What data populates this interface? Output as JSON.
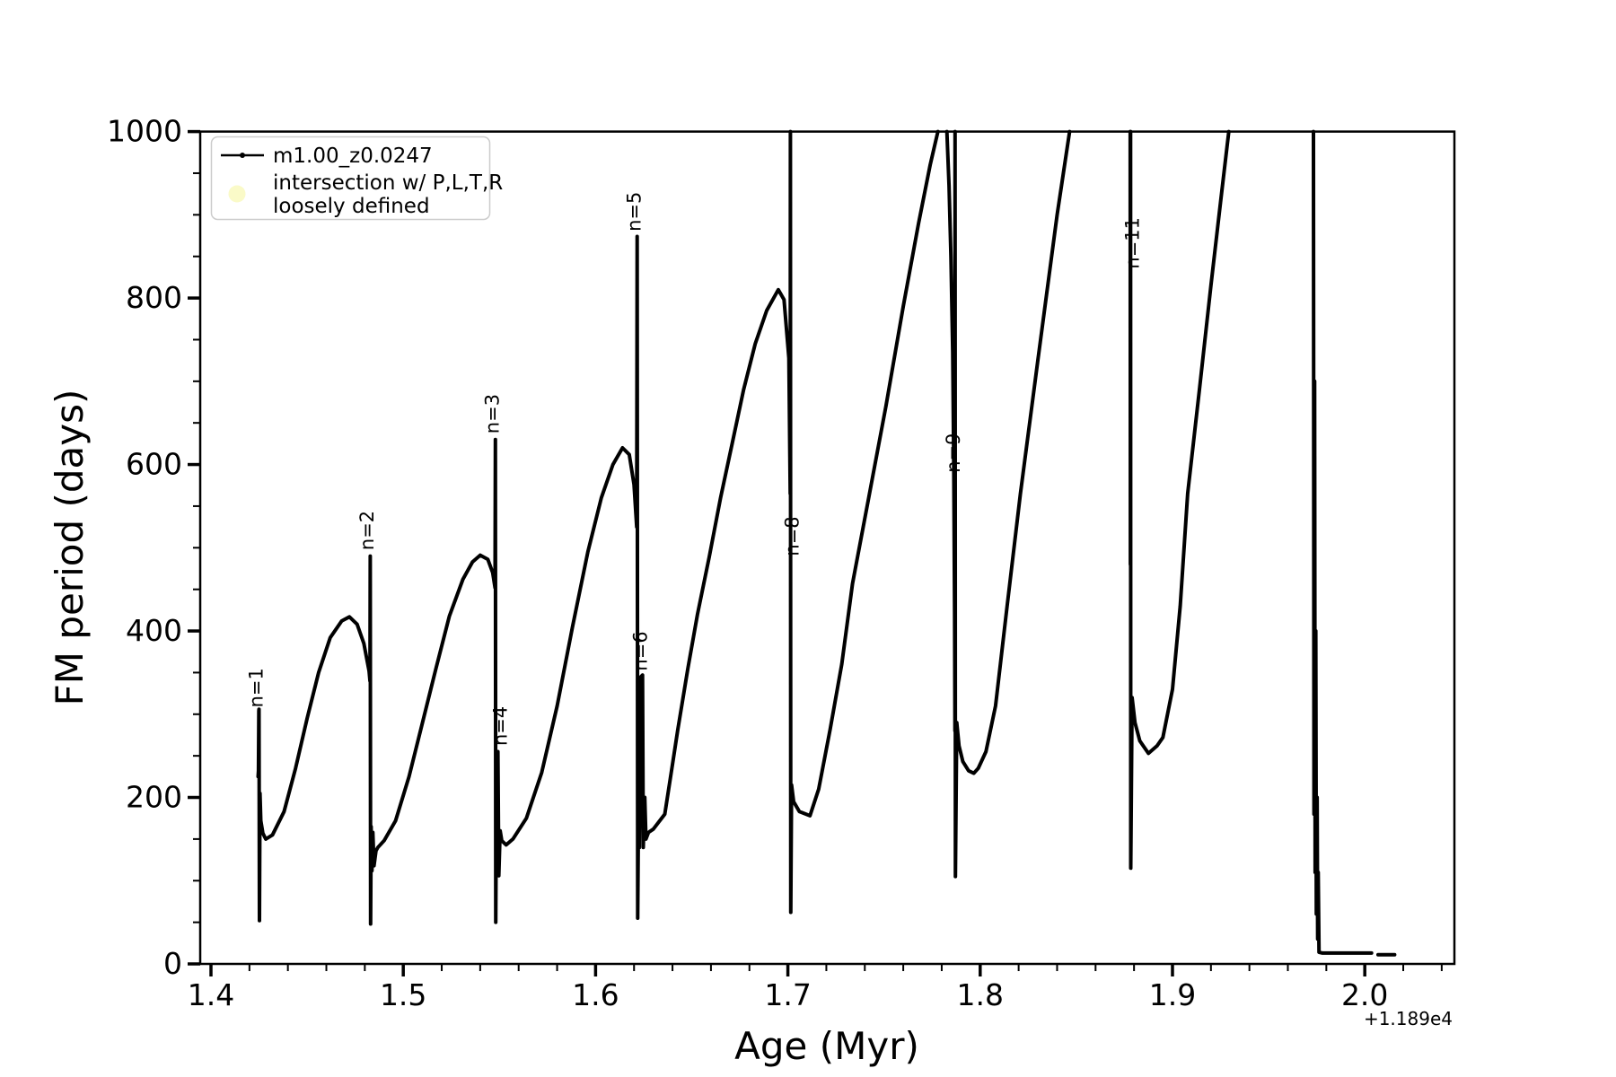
{
  "chart_data": {
    "type": "line",
    "title": "",
    "xlabel": "Age (Myr)",
    "ylabel": "FM period (days)",
    "x_axis_offset": "+1.189e4",
    "xlim": [
      1.3944,
      2.0466
    ],
    "ylim": [
      0,
      1000
    ],
    "grid": false,
    "legend_position": "upper-left",
    "x_major_ticks": [
      1.4,
      1.5,
      1.6,
      1.7,
      1.8,
      1.9,
      2.0
    ],
    "x_major_labels": [
      "1.4",
      "1.5",
      "1.6",
      "1.7",
      "1.8",
      "1.9",
      "2.0"
    ],
    "x_minor_step": 0.02,
    "y_major_ticks": [
      0,
      200,
      400,
      600,
      800,
      1000
    ],
    "y_major_labels": [
      "0",
      "200",
      "400",
      "600",
      "800",
      "1000"
    ],
    "y_minor_step": 50,
    "series": [
      {
        "name": "m1.00_z0.0247",
        "color": "#000000",
        "marker": "point",
        "segments": [
          [
            [
              1.4245,
              225
            ],
            [
              1.4247,
              232
            ],
            [
              1.4249,
              304
            ],
            [
              1.425,
              306
            ],
            [
              1.4252,
              52
            ],
            [
              1.4255,
              205
            ],
            [
              1.4259,
              172
            ],
            [
              1.427,
              157
            ],
            [
              1.4285,
              150
            ],
            [
              1.432,
              155
            ],
            [
              1.438,
              183
            ],
            [
              1.444,
              235
            ],
            [
              1.45,
              295
            ],
            [
              1.456,
              350
            ],
            [
              1.462,
              392
            ],
            [
              1.468,
              412
            ],
            [
              1.472,
              417
            ],
            [
              1.476,
              408
            ],
            [
              1.4795,
              385
            ],
            [
              1.4822,
              352
            ],
            [
              1.4827,
              340
            ],
            [
              1.4828,
              490
            ],
            [
              1.483,
              48
            ],
            [
              1.4833,
              165
            ],
            [
              1.4837,
              112
            ],
            [
              1.4842,
              158
            ],
            [
              1.4848,
              118
            ],
            [
              1.4858,
              136
            ],
            [
              1.4868,
              140
            ],
            [
              1.49,
              148
            ],
            [
              1.496,
              172
            ],
            [
              1.503,
              225
            ],
            [
              1.51,
              290
            ],
            [
              1.517,
              355
            ],
            [
              1.524,
              418
            ],
            [
              1.531,
              462
            ],
            [
              1.536,
              483
            ],
            [
              1.54,
              491
            ],
            [
              1.544,
              486
            ],
            [
              1.5465,
              470
            ],
            [
              1.5477,
              452
            ],
            [
              1.5479,
              630
            ],
            [
              1.5481,
              50
            ],
            [
              1.5484,
              190
            ],
            [
              1.5488,
              108
            ],
            [
              1.5492,
              255
            ],
            [
              1.5497,
              106
            ],
            [
              1.5504,
              160
            ],
            [
              1.5512,
              148
            ],
            [
              1.5535,
              143
            ],
            [
              1.557,
              150
            ],
            [
              1.564,
              175
            ],
            [
              1.572,
              230
            ],
            [
              1.58,
              310
            ],
            [
              1.588,
              405
            ],
            [
              1.596,
              495
            ],
            [
              1.603,
              560
            ],
            [
              1.609,
              600
            ],
            [
              1.614,
              620
            ],
            [
              1.6175,
              612
            ],
            [
              1.62,
              576
            ],
            [
              1.6214,
              525
            ],
            [
              1.6216,
              874
            ],
            [
              1.6219,
              55
            ],
            [
              1.6224,
              210
            ],
            [
              1.6228,
              140
            ],
            [
              1.6236,
              345
            ],
            [
              1.6244,
              347
            ],
            [
              1.6248,
              140
            ],
            [
              1.6256,
              200
            ],
            [
              1.6262,
              150
            ],
            [
              1.6275,
              158
            ],
            [
              1.63,
              162
            ],
            [
              1.636,
              180
            ],
            [
              1.64,
              240
            ],
            [
              1.6427,
              281
            ],
            [
              1.648,
              355
            ],
            [
              1.653,
              420
            ],
            [
              1.6591,
              489
            ],
            [
              1.665,
              560
            ],
            [
              1.671,
              625
            ],
            [
              1.677,
              690
            ],
            [
              1.683,
              745
            ],
            [
              1.689,
              785
            ],
            [
              1.695,
              810
            ],
            [
              1.698,
              798
            ],
            [
              1.7005,
              728
            ],
            [
              1.7012,
              565
            ],
            [
              1.7013,
              1000
            ],
            [
              1.7015,
              62
            ],
            [
              1.7019,
              215
            ],
            [
              1.703,
              195
            ],
            [
              1.706,
              183
            ],
            [
              1.7115,
              178
            ],
            [
              1.716,
              210
            ],
            [
              1.722,
              282
            ],
            [
              1.728,
              360
            ],
            [
              1.7336,
              457
            ],
            [
              1.742,
              560
            ],
            [
              1.751,
              670
            ],
            [
              1.76,
              790
            ],
            [
              1.768,
              890
            ],
            [
              1.774,
              960
            ],
            [
              1.778,
              1000
            ]
          ],
          [
            [
              1.7827,
              1000
            ],
            [
              1.7838,
              935
            ],
            [
              1.7848,
              850
            ],
            [
              1.7857,
              735
            ],
            [
              1.7863,
              590
            ],
            [
              1.7867,
              420
            ],
            [
              1.7869,
              280
            ],
            [
              1.78695,
              1000
            ],
            [
              1.7871,
              105
            ],
            [
              1.7878,
              290
            ],
            [
              1.789,
              262
            ],
            [
              1.791,
              243
            ],
            [
              1.794,
              232
            ],
            [
              1.7967,
              229
            ],
            [
              1.799,
              235
            ],
            [
              1.803,
              255
            ],
            [
              1.808,
              310
            ],
            [
              1.814,
              430
            ],
            [
              1.8209,
              565
            ],
            [
              1.83,
              725
            ],
            [
              1.84,
              900
            ],
            [
              1.8465,
              1000
            ]
          ],
          [
            [
              1.878,
              1000
            ],
            [
              1.8781,
              480
            ],
            [
              1.8782,
              1000
            ],
            [
              1.8783,
              115
            ],
            [
              1.879,
              320
            ],
            [
              1.8805,
              290
            ],
            [
              1.883,
              268
            ],
            [
              1.8875,
              253
            ],
            [
              1.892,
              262
            ],
            [
              1.895,
              272
            ],
            [
              1.9,
              330
            ],
            [
              1.904,
              430
            ],
            [
              1.9079,
              565
            ],
            [
              1.914,
              690
            ],
            [
              1.92,
              815
            ],
            [
              1.925,
              915
            ],
            [
              1.9293,
              1000
            ]
          ],
          [
            [
              1.9733,
              1000
            ],
            [
              1.9736,
              180
            ],
            [
              1.9739,
              700
            ],
            [
              1.9742,
              110
            ],
            [
              1.9745,
              400
            ],
            [
              1.9748,
              60
            ],
            [
              1.9752,
              200
            ],
            [
              1.9755,
              30
            ],
            [
              1.9758,
              110
            ],
            [
              1.9762,
              14
            ],
            [
              1.978,
              13
            ],
            [
              2.0035,
              13
            ]
          ],
          [
            [
              2.0069,
              11
            ],
            [
              2.0155,
              11
            ]
          ]
        ]
      }
    ],
    "annotations": [
      {
        "text": "n=1",
        "x": 1.4268,
        "y": 308
      },
      {
        "text": "n=2",
        "x": 1.4846,
        "y": 497
      },
      {
        "text": "n=3",
        "x": 1.5497,
        "y": 637
      },
      {
        "text": "n=4",
        "x": 1.5538,
        "y": 262
      },
      {
        "text": "n=5",
        "x": 1.6234,
        "y": 880
      },
      {
        "text": "n=6",
        "x": 1.6266,
        "y": 352
      },
      {
        "text": "n=8",
        "x": 1.7055,
        "y": 490
      },
      {
        "text": "n=9",
        "x": 1.7893,
        "y": 590
      },
      {
        "text": "n=11",
        "x": 1.8825,
        "y": 835
      }
    ]
  },
  "legend": {
    "entries": [
      {
        "label": "m1.00_z0.0247",
        "marker": "line-dot",
        "color": "#000000"
      },
      {
        "label": "intersection w/ P,L,T,R\nloosely defined",
        "line1": "intersection w/ P,L,T,R",
        "line2": "loosely defined",
        "marker": "circle",
        "color": "#fafac8"
      }
    ]
  },
  "colors": {
    "line": "#000000",
    "background": "#ffffff",
    "legend_border": "#cccccc",
    "intersection_marker": "#fafac8"
  }
}
